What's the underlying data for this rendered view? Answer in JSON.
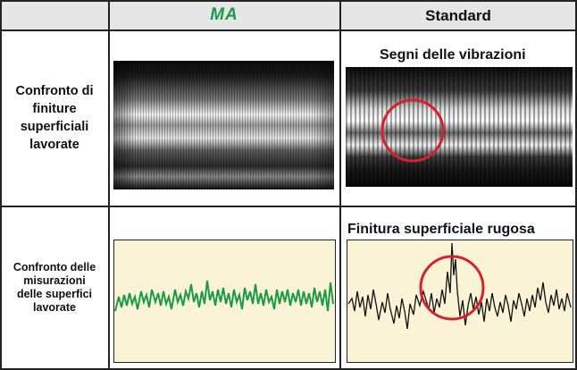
{
  "header": {
    "col_ma": "MA",
    "col_standard": "Standard"
  },
  "rows": [
    {
      "label_lines": [
        "Confronto di",
        "finiture",
        "superficiali",
        "lavorate"
      ],
      "standard_caption": "Segni delle vibrazioni"
    },
    {
      "label_lines": [
        "Confronto delle",
        "misurazioni",
        "delle superfici",
        "lavorate"
      ],
      "standard_caption": "Finitura superficiale rugosa"
    }
  ],
  "colors": {
    "header_bg": "#e6e6e6",
    "ma_green": "#1a9a48",
    "profile_bg": "#fbf3d6",
    "highlight_red": "#d8202a"
  }
}
